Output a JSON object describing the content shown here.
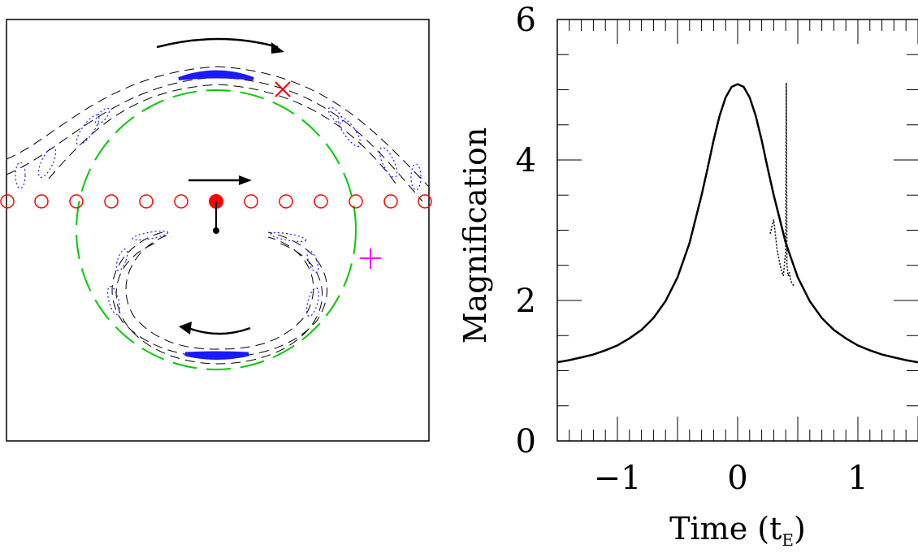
{
  "colors": {
    "images": "#1a1aff",
    "einstein_ring": "#00cc00",
    "source_track": "#ff0000",
    "cross_mark": "#ff0000",
    "plus_mark": "#ff00ff",
    "lines": "#000000"
  },
  "chart_data": [
    {
      "type": "diagram",
      "shapes": [
        "source-track-circles",
        "lens-star",
        "einstein-ring",
        "lensed-images",
        "direction-arrows",
        "cross-marker",
        "plus-marker"
      ]
    },
    {
      "type": "line",
      "xlabel": "Time (t",
      "xlabel_sub": "E",
      "xlabel_close": ")",
      "ylabel": "Magnification",
      "xlim": [
        -1.5,
        1.5
      ],
      "ylim": [
        0,
        6
      ],
      "xticks": [
        -1,
        0,
        1
      ],
      "xtick_labels": [
        "−1",
        "0",
        "1"
      ],
      "yticks": [
        0,
        2,
        4,
        6
      ],
      "ytick_labels": [
        "0",
        "2",
        "4",
        "6"
      ],
      "series": [
        {
          "style": "solid",
          "x": [
            -1.5,
            -1.4,
            -1.3,
            -1.2,
            -1.1,
            -1.0,
            -0.9,
            -0.8,
            -0.7,
            -0.6,
            -0.5,
            -0.4,
            -0.3,
            -0.25,
            -0.2,
            -0.15,
            -0.1,
            -0.05,
            0.0,
            0.05,
            0.1,
            0.15,
            0.2,
            0.25,
            0.3,
            0.4,
            0.5,
            0.6,
            0.7,
            0.8,
            0.9,
            1.0,
            1.1,
            1.2,
            1.3,
            1.4,
            1.5
          ],
          "y": [
            1.12,
            1.15,
            1.19,
            1.23,
            1.29,
            1.36,
            1.46,
            1.58,
            1.75,
            1.99,
            2.33,
            2.82,
            3.5,
            3.88,
            4.28,
            4.63,
            4.89,
            5.04,
            5.08,
            5.04,
            4.89,
            4.63,
            4.28,
            3.88,
            3.5,
            2.82,
            2.33,
            1.99,
            1.75,
            1.58,
            1.46,
            1.36,
            1.29,
            1.23,
            1.19,
            1.15,
            1.12
          ]
        },
        {
          "style": "dotted",
          "x": [
            0.27,
            0.3,
            0.33,
            0.36,
            0.38,
            0.4,
            0.405,
            0.41,
            0.42,
            0.43,
            0.44,
            0.45,
            0.47
          ],
          "y": [
            2.95,
            3.15,
            2.7,
            2.45,
            2.35,
            2.7,
            5.1,
            2.5,
            2.35,
            2.4,
            2.3,
            2.25,
            2.2
          ]
        }
      ]
    }
  ]
}
